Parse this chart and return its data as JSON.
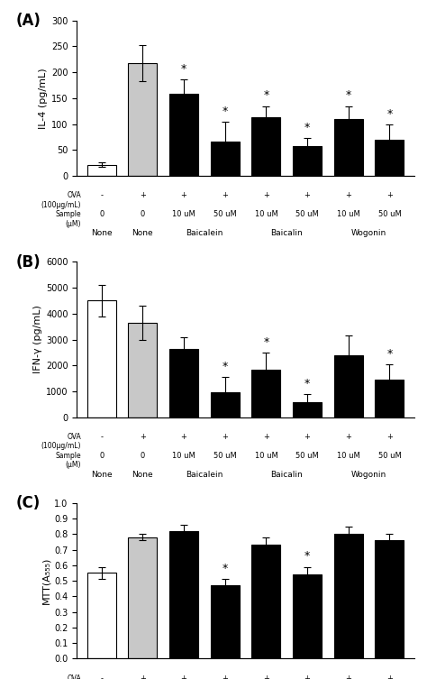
{
  "panels": [
    {
      "label": "(A)",
      "ylabel": "IL-4 (pg/mL)",
      "ylim": [
        0,
        300
      ],
      "yticks": [
        0,
        50,
        100,
        150,
        200,
        250,
        300
      ],
      "values": [
        22,
        218,
        158,
        67,
        113,
        58,
        110,
        70
      ],
      "errors": [
        5,
        35,
        28,
        38,
        22,
        15,
        25,
        30
      ],
      "colors": [
        "white",
        "#c8c8c8",
        "black",
        "black",
        "black",
        "black",
        "black",
        "black"
      ],
      "edgecolors": [
        "black",
        "black",
        "black",
        "black",
        "black",
        "black",
        "black",
        "black"
      ],
      "star": [
        false,
        false,
        true,
        true,
        true,
        true,
        true,
        true
      ]
    },
    {
      "label": "(B)",
      "ylabel": "IFN-γ (pg/mL)",
      "ylim": [
        0,
        6000
      ],
      "yticks": [
        0,
        1000,
        2000,
        3000,
        4000,
        5000,
        6000
      ],
      "values": [
        4500,
        3650,
        2650,
        950,
        1850,
        600,
        2400,
        1450
      ],
      "errors": [
        600,
        650,
        450,
        600,
        650,
        300,
        750,
        600
      ],
      "colors": [
        "white",
        "#c8c8c8",
        "black",
        "black",
        "black",
        "black",
        "black",
        "black"
      ],
      "edgecolors": [
        "black",
        "black",
        "black",
        "black",
        "black",
        "black",
        "black",
        "black"
      ],
      "star": [
        false,
        false,
        false,
        true,
        true,
        true,
        false,
        true
      ]
    },
    {
      "label": "(C)",
      "ylabel": "MTT(A₅₅₅)",
      "ylim": [
        0,
        1
      ],
      "yticks": [
        0,
        0.1,
        0.2,
        0.3,
        0.4,
        0.5,
        0.6,
        0.7,
        0.8,
        0.9,
        1.0
      ],
      "values": [
        0.55,
        0.78,
        0.82,
        0.47,
        0.73,
        0.54,
        0.8,
        0.76
      ],
      "errors": [
        0.04,
        0.02,
        0.04,
        0.04,
        0.05,
        0.05,
        0.05,
        0.04
      ],
      "colors": [
        "white",
        "#c8c8c8",
        "black",
        "black",
        "black",
        "black",
        "black",
        "black"
      ],
      "edgecolors": [
        "black",
        "black",
        "black",
        "black",
        "black",
        "black",
        "black",
        "black"
      ],
      "star": [
        false,
        false,
        false,
        true,
        false,
        true,
        false,
        false
      ]
    }
  ],
  "group_labels": [
    "None",
    "None",
    "Baicalein",
    "Baicalin",
    "Wogonin"
  ],
  "ova_labels": [
    "-",
    "+",
    "+",
    "+",
    "+",
    "+",
    "+",
    "+"
  ],
  "sample_labels": [
    "0",
    "0",
    "10 uM",
    "50 uM",
    "10 uM",
    "50 uM",
    "10 uM",
    "50 uM"
  ],
  "bar_positions": [
    0,
    1,
    2,
    3,
    4,
    5,
    6,
    7
  ],
  "bar_width": 0.7,
  "figsize": [
    4.74,
    7.53
  ],
  "dpi": 100
}
